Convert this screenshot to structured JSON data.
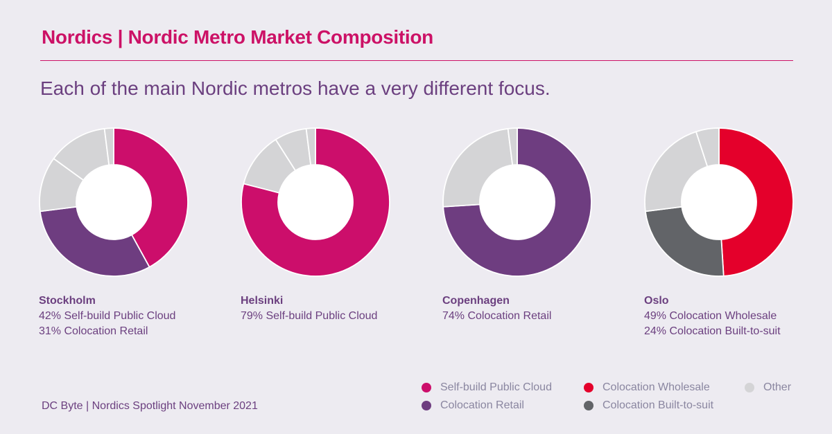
{
  "header": {
    "title": "Nordics | Nordic Metro Market Composition",
    "subtitle": "Each of the main Nordic metros have a very different focus."
  },
  "colors": {
    "self_build_public_cloud": "#cc0e6b",
    "colocation_retail": "#6e3d80",
    "colocation_wholesale": "#e4002b",
    "colocation_built_to_suit": "#626468",
    "other": "#d4d4d6",
    "slice_border": "#ffffff"
  },
  "metros": [
    {
      "name": "Stockholm",
      "lines": [
        "42% Self-build Public Cloud",
        "31% Colocation Retail"
      ]
    },
    {
      "name": "Helsinki",
      "lines": [
        "79% Self-build Public Cloud"
      ]
    },
    {
      "name": "Copenhagen",
      "lines": [
        "74% Colocation Retail"
      ]
    },
    {
      "name": "Oslo",
      "lines": [
        "49% Colocation Wholesale",
        "24% Colocation Built-to-suit"
      ]
    }
  ],
  "legend": {
    "self_build_public_cloud": "Self-build Public Cloud",
    "colocation_retail": "Colocation Retail",
    "colocation_wholesale": "Colocation Wholesale",
    "colocation_built_to_suit": "Colocation Built-to-suit",
    "other": "Other"
  },
  "footer": {
    "source": "DC Byte | Nordics Spotlight November 2021"
  },
  "chart_data": [
    {
      "type": "pie",
      "title": "Stockholm",
      "categories": [
        "Self-build Public Cloud",
        "Colocation Retail",
        "Other",
        "Other",
        "Other"
      ],
      "color_keys": [
        "self_build_public_cloud",
        "colocation_retail",
        "other",
        "other",
        "other"
      ],
      "values": [
        42,
        31,
        12,
        13,
        2
      ]
    },
    {
      "type": "pie",
      "title": "Helsinki",
      "categories": [
        "Self-build Public Cloud",
        "Other",
        "Other",
        "Other"
      ],
      "color_keys": [
        "self_build_public_cloud",
        "other",
        "other",
        "other"
      ],
      "values": [
        79,
        12,
        7,
        2
      ]
    },
    {
      "type": "pie",
      "title": "Copenhagen",
      "categories": [
        "Colocation Retail",
        "Other",
        "Other"
      ],
      "color_keys": [
        "colocation_retail",
        "other",
        "other"
      ],
      "values": [
        74,
        24,
        2
      ]
    },
    {
      "type": "pie",
      "title": "Oslo",
      "categories": [
        "Colocation Wholesale",
        "Colocation Built-to-suit",
        "Other",
        "Other"
      ],
      "color_keys": [
        "colocation_wholesale",
        "colocation_built_to_suit",
        "other",
        "other"
      ],
      "values": [
        49,
        24,
        22,
        5
      ]
    }
  ]
}
